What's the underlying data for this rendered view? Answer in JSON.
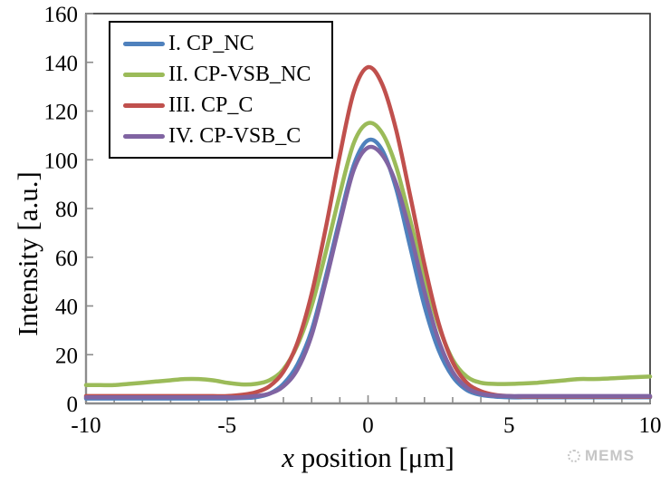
{
  "figure": {
    "background": "#ffffff",
    "watermark": {
      "icon": "mems-logo-icon",
      "text": "MEMS",
      "color": "#c6c6c6"
    }
  },
  "chart_data": {
    "type": "line",
    "title": "",
    "xlabel": "x position [μm]",
    "xlabel_var": "x",
    "xlabel_rest": " position [μm]",
    "ylabel": "Intensity [a.u.]",
    "xlim": [
      -10,
      10
    ],
    "ylim": [
      0,
      160
    ],
    "x_major_ticks": [
      -10,
      -5,
      0,
      5,
      10
    ],
    "x_minor_tick_step": 1,
    "y_ticks": [
      0,
      20,
      40,
      60,
      80,
      100,
      120,
      140,
      160
    ],
    "grid": false,
    "legend_position": "upper-left-inside",
    "axis_color": "#8c8c8c",
    "border_color": "#3a3a3a",
    "x": [
      -10,
      -9.5,
      -9,
      -8.5,
      -8,
      -7.5,
      -7,
      -6.5,
      -6,
      -5.5,
      -5,
      -4.5,
      -4,
      -3.5,
      -3,
      -2.5,
      -2,
      -1.5,
      -1,
      -0.5,
      0,
      0.5,
      1,
      1.5,
      2,
      2.5,
      3,
      3.5,
      4,
      4.5,
      5,
      5.5,
      6,
      6.5,
      7,
      7.5,
      8,
      8.5,
      9,
      9.5,
      10
    ],
    "series": [
      {
        "name": "I. CP_NC",
        "color": "#4f81bd",
        "values": [
          2,
          2,
          2,
          2,
          2,
          2,
          2,
          2,
          2,
          2,
          2,
          2.2,
          2.5,
          4,
          8,
          16,
          30,
          52,
          76,
          98,
          108,
          104,
          88,
          64,
          40,
          22,
          11,
          5.5,
          3.5,
          2.8,
          2.5,
          2.5,
          2.5,
          2.5,
          2.5,
          2.5,
          2.5,
          2.5,
          2.5,
          2.5,
          2.5
        ]
      },
      {
        "name": "II. CP-VSB_NC",
        "color": "#9bbb59",
        "values": [
          7.5,
          7.5,
          7.5,
          8,
          8.5,
          9,
          9.5,
          10,
          10,
          9.5,
          8.5,
          7.8,
          8,
          9.5,
          14,
          24,
          40,
          62,
          86,
          107,
          115,
          111,
          97,
          75,
          52,
          32,
          18,
          11,
          8.5,
          8,
          8,
          8.2,
          8.5,
          9,
          9.5,
          10,
          10,
          10.2,
          10.5,
          10.8,
          11
        ]
      },
      {
        "name": "III. CP_C",
        "color": "#c0504d",
        "values": [
          3,
          3,
          3,
          3,
          3,
          3,
          3,
          3,
          3,
          3,
          3,
          3.5,
          4.5,
          7,
          13,
          25,
          45,
          72,
          102,
          128,
          138,
          131,
          112,
          85,
          57,
          33,
          17,
          8.5,
          5,
          3.5,
          3,
          2.8,
          2.8,
          2.8,
          2.8,
          2.8,
          2.8,
          2.8,
          2.8,
          2.8,
          2.8
        ]
      },
      {
        "name": "IV. CP-VSB_C",
        "color": "#8064a2",
        "values": [
          2.5,
          2.5,
          2.5,
          2.5,
          2.5,
          2.5,
          2.5,
          2.5,
          2.5,
          2.5,
          2.5,
          2.5,
          3,
          4,
          7,
          14,
          28,
          50,
          74,
          96,
          105,
          102,
          90,
          70,
          46,
          26,
          13,
          6.5,
          4,
          3.2,
          3,
          3,
          3,
          3,
          3,
          3,
          3,
          3,
          3,
          3,
          3
        ]
      }
    ]
  }
}
